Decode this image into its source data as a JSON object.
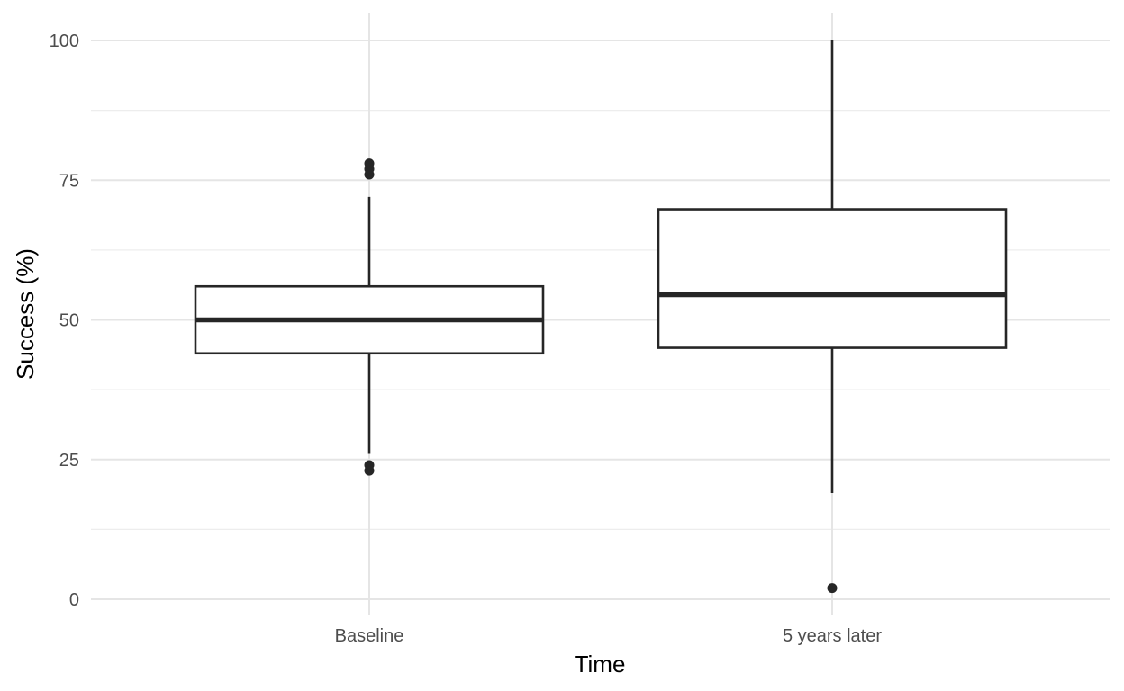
{
  "chart_data": {
    "type": "box",
    "xlabel": "Time",
    "ylabel": "Success (%)",
    "ylim": [
      -5,
      105
    ],
    "y_ticks": [
      0,
      25,
      50,
      75,
      100
    ],
    "y_minor_ticks": [
      12.5,
      37.5,
      62.5,
      87.5
    ],
    "categories": [
      "Baseline",
      "5 years later"
    ],
    "grid": true,
    "legend": "none",
    "boxes": [
      {
        "category": "Baseline",
        "whisker_low": 26,
        "q1": 44,
        "median": 50,
        "q3": 56,
        "whisker_high": 72,
        "outliers": [
          23,
          24,
          76,
          77,
          78
        ]
      },
      {
        "category": "5 years later",
        "whisker_low": 19,
        "q1": 45,
        "median": 54.5,
        "q3": 69.8,
        "whisker_high": 100,
        "outliers": [
          2
        ]
      }
    ]
  }
}
